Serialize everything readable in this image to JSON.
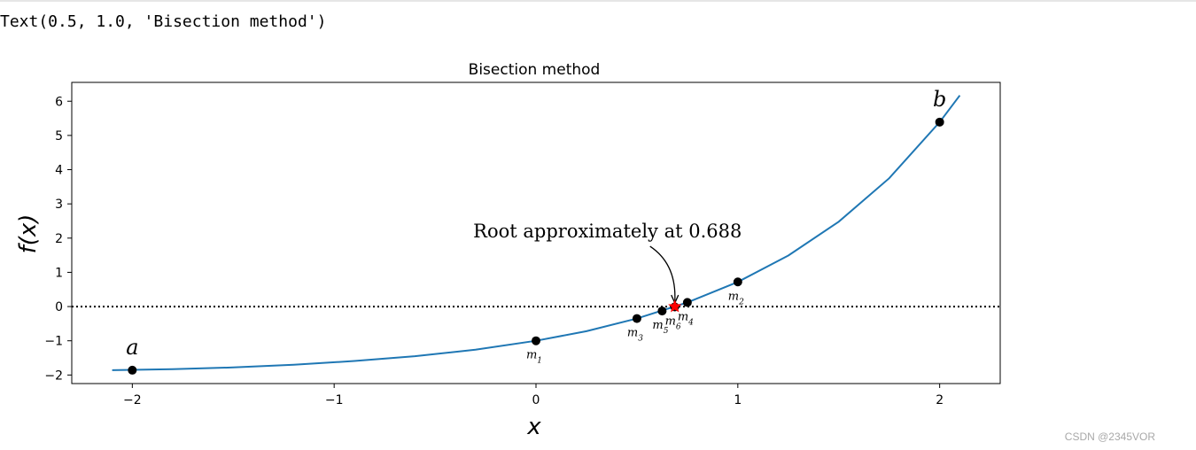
{
  "notebook": {
    "output_text": "Text(0.5, 1.0, 'Bisection method')",
    "watermark": "CSDN @2345VOR"
  },
  "chart_data": {
    "type": "line",
    "title": "Bisection method",
    "xlabel": "x",
    "ylabel": "f(x)",
    "xlim": [
      -2.3,
      2.3
    ],
    "ylim": [
      -2.25,
      6.55
    ],
    "xticks": [
      -2,
      -1,
      0,
      1,
      2
    ],
    "xtick_labels": [
      "−2",
      "−1",
      "0",
      "1",
      "2"
    ],
    "yticks": [
      -2,
      -1,
      0,
      1,
      2,
      3,
      4,
      5,
      6
    ],
    "ytick_labels": [
      "−2",
      "−1",
      "0",
      "1",
      "2",
      "3",
      "4",
      "5",
      "6"
    ],
    "grid": false,
    "curve": {
      "color": "#1f77b4",
      "x": [
        -2.1,
        -1.8,
        -1.5,
        -1.2,
        -0.9,
        -0.6,
        -0.3,
        0.0,
        0.25,
        0.5,
        0.75,
        1.0,
        1.25,
        1.5,
        1.75,
        2.0,
        2.1
      ],
      "y": [
        -1.86,
        -1.83,
        -1.78,
        -1.7,
        -1.59,
        -1.45,
        -1.26,
        -1.0,
        -0.72,
        -0.35,
        0.12,
        0.72,
        1.49,
        2.48,
        3.75,
        5.39,
        6.17
      ]
    },
    "zero_line": {
      "y": 0,
      "style": "dotted",
      "color": "#000000"
    },
    "endpoints": [
      {
        "label": "a",
        "x": -2,
        "y": -1.86
      },
      {
        "label": "b",
        "x": 2,
        "y": 5.39
      }
    ],
    "midpoints": [
      {
        "label": "m",
        "sub": "1",
        "x": 0,
        "y": -1.0
      },
      {
        "label": "m",
        "sub": "2",
        "x": 1,
        "y": 0.72
      },
      {
        "label": "m",
        "sub": "3",
        "x": 0.5,
        "y": -0.35
      },
      {
        "label": "m",
        "sub": "4",
        "x": 0.75,
        "y": 0.12
      },
      {
        "label": "m",
        "sub": "5",
        "x": 0.625,
        "y": -0.13
      },
      {
        "label": "m",
        "sub": "6",
        "x": 0.6875,
        "y": -0.01
      }
    ],
    "root": {
      "x": 0.688,
      "y": 0,
      "color": "#ff0000",
      "marker": "star"
    },
    "annotation": {
      "text": "Root approximately at 0.688",
      "x": 0.688,
      "y": 0
    }
  }
}
